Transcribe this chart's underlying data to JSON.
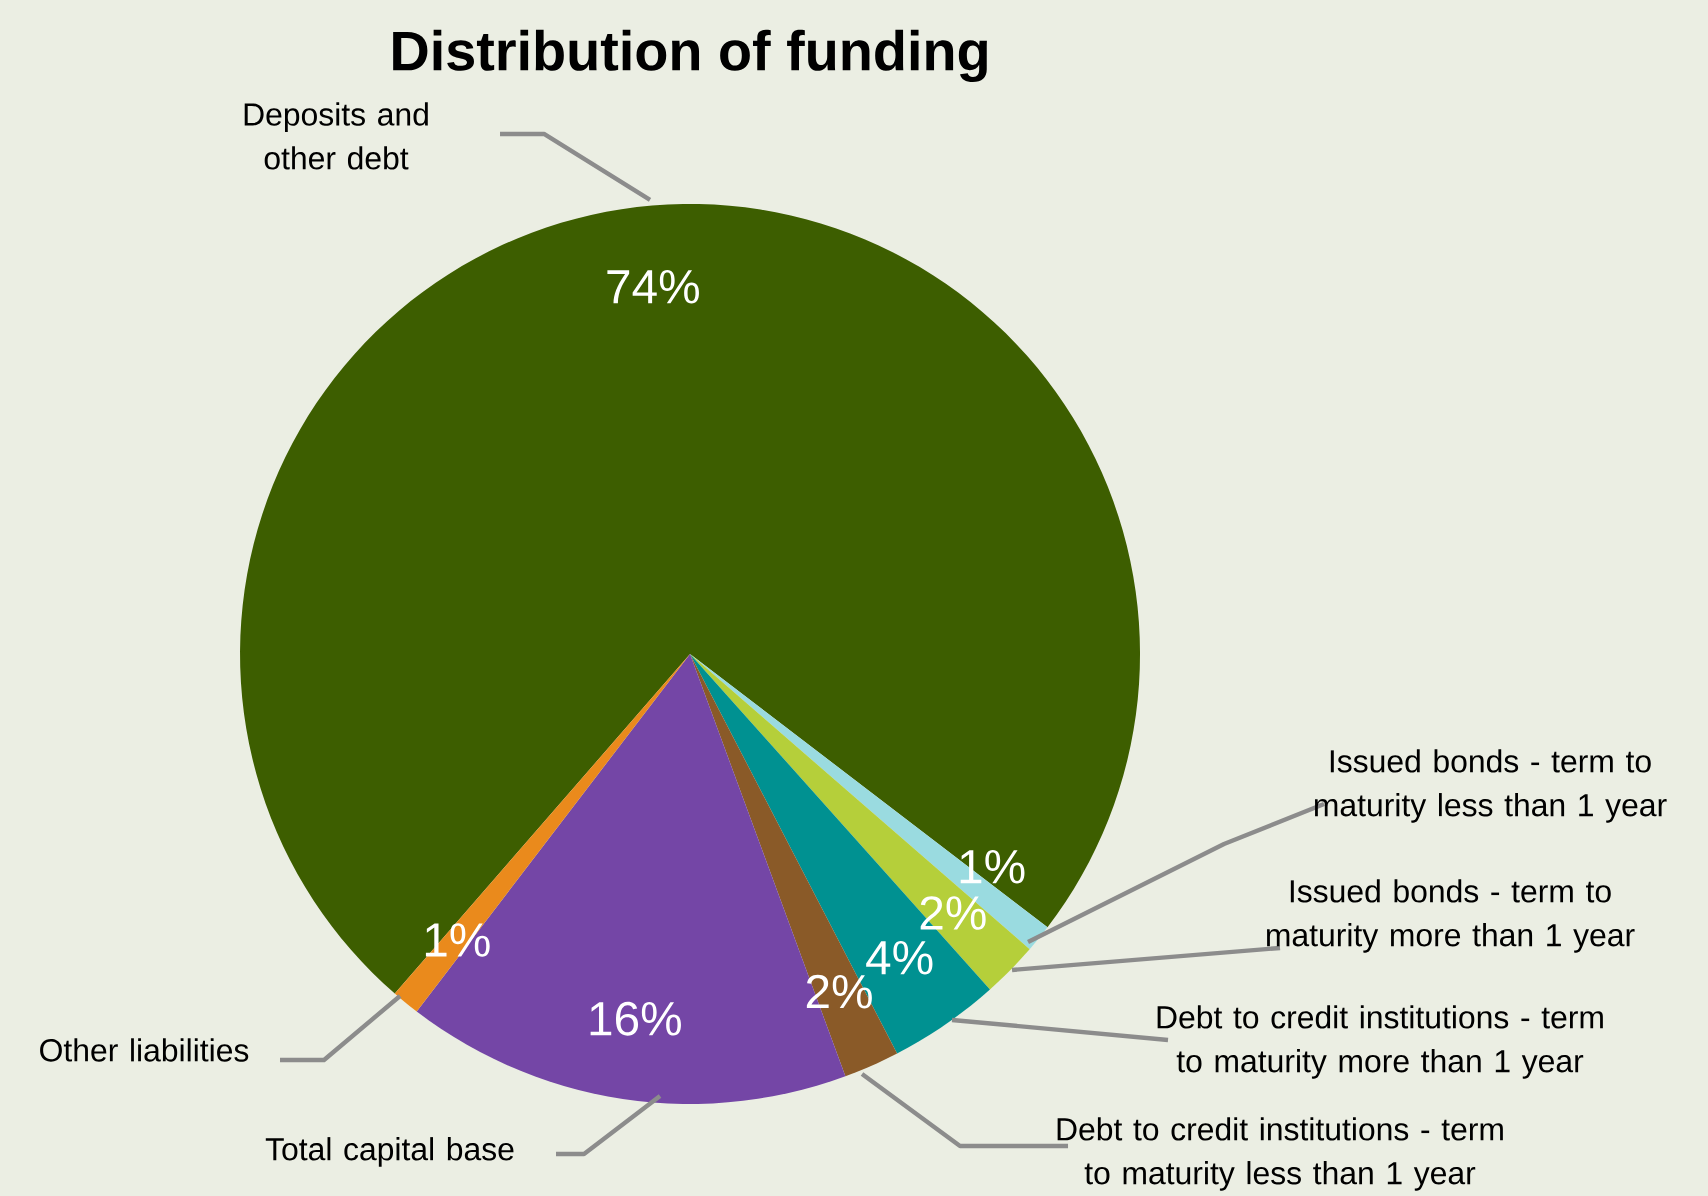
{
  "chart_data": {
    "type": "pie",
    "title": "Distribution of funding",
    "categories": [
      "Deposits and other debt",
      "Issued bonds - term to maturity less than 1 year",
      "Issued bonds - term to maturity more than 1 year",
      "Debt to credit institutions - term to maturity more than 1 year",
      "Debt to credit institutions - term to maturity less than 1 year",
      "Total capital base",
      "Other liabilities"
    ],
    "values": [
      74,
      1,
      2,
      4,
      2,
      16,
      1
    ],
    "value_labels": [
      "74%",
      "1%",
      "2%",
      "4%",
      "2%",
      "16%",
      "1%"
    ],
    "colors": [
      "#3d5e00",
      "#9adbe0",
      "#b5cf3a",
      "#009191",
      "#8a5a28",
      "#7446a6",
      "#ea8a1c"
    ]
  }
}
